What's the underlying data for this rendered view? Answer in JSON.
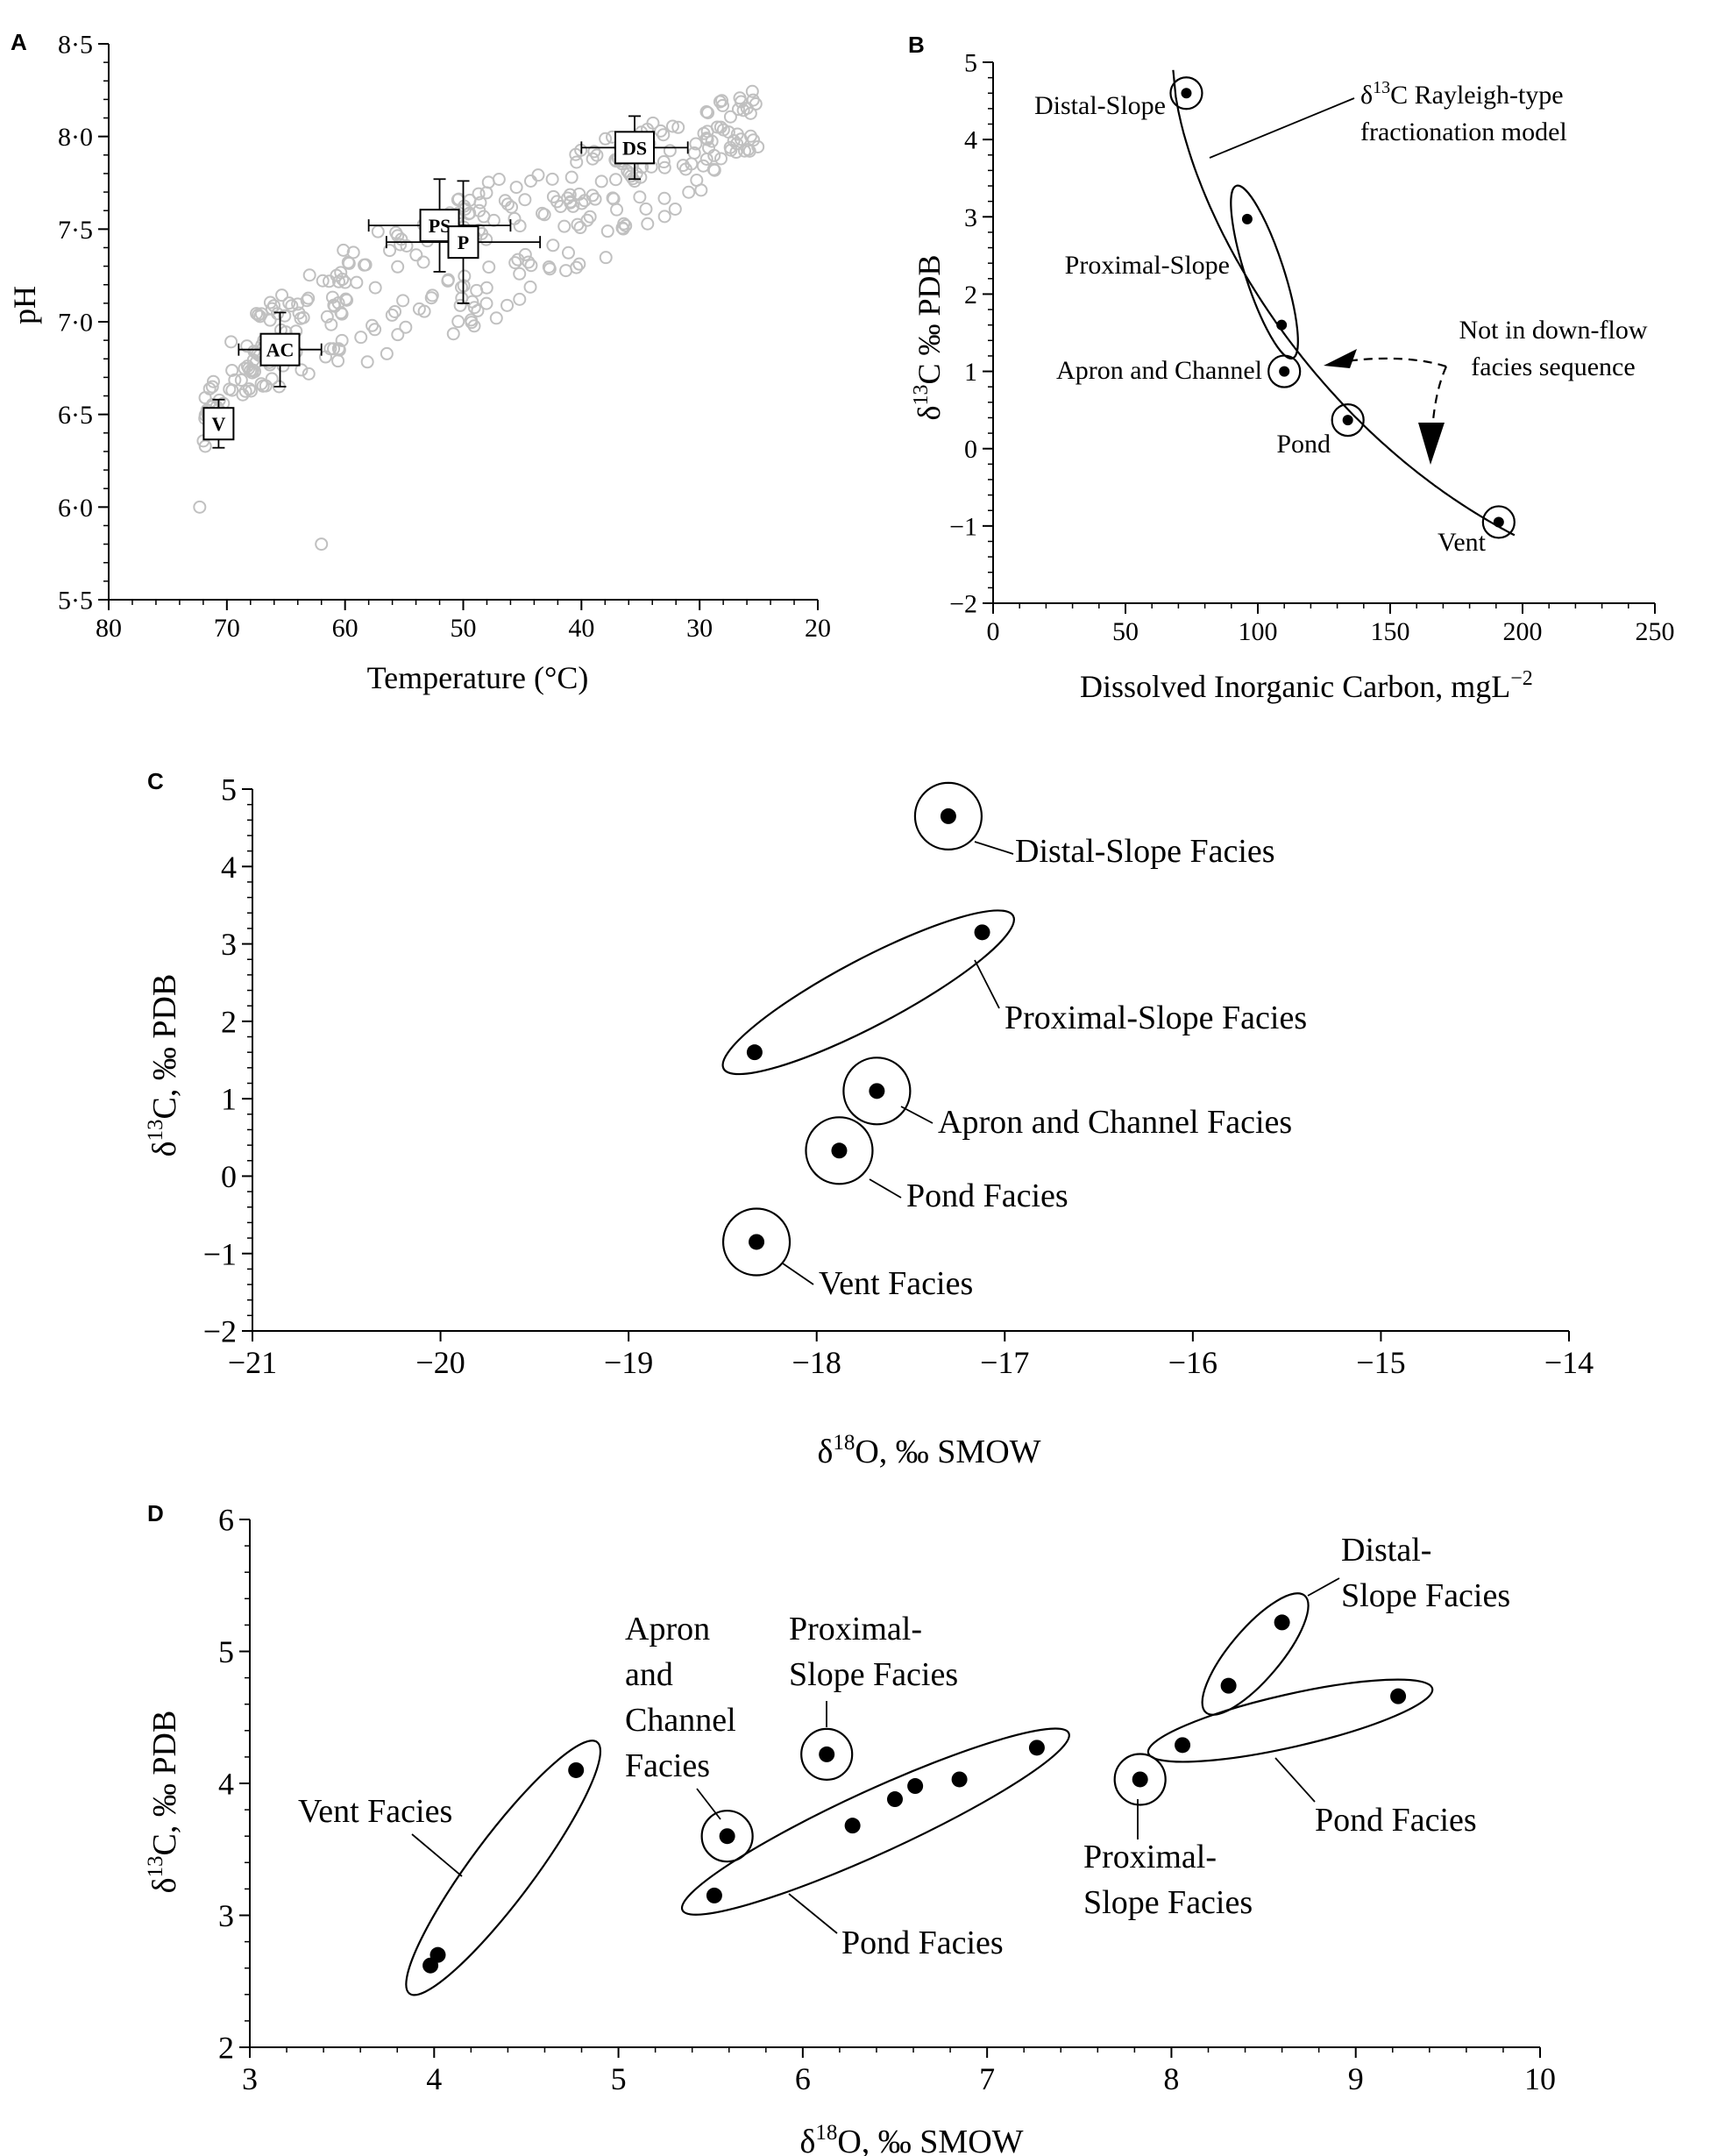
{
  "chart_data": [
    {
      "id": "A",
      "type": "scatter",
      "panel_label": "A",
      "xlabel": "Temperature (°C)",
      "ylabel": "pH",
      "xlim": [
        80,
        20
      ],
      "ylim": [
        5.5,
        8.5
      ],
      "x_ticks": [
        "80",
        "70",
        "60",
        "50",
        "40",
        "30",
        "20"
      ],
      "y_ticks": [
        "5·5",
        "6·0",
        "6·5",
        "7·0",
        "7·5",
        "8·0",
        "8·5"
      ],
      "labelled_points": [
        {
          "label": "V",
          "x": 70.7,
          "y": 6.45,
          "xerr": 1.2,
          "yerr": 0.13
        },
        {
          "label": "AC",
          "x": 65.5,
          "y": 6.85,
          "xerr": 3.5,
          "yerr": 0.2
        },
        {
          "label": "PS",
          "x": 52.0,
          "y": 7.52,
          "xerr": 6.0,
          "yerr": 0.25
        },
        {
          "label": "P",
          "x": 50.0,
          "y": 7.43,
          "xerr": 6.5,
          "yerr": 0.33
        },
        {
          "label": "DS",
          "x": 35.5,
          "y": 7.94,
          "xerr": 4.5,
          "yerr": 0.17
        }
      ],
      "colors": {
        "background_points": "#c0c0c0",
        "labelled_points": "#000000"
      }
    },
    {
      "id": "B",
      "type": "scatter",
      "panel_label": "B",
      "xlabel": "Dissolved Inorganic Carbon, mgL",
      "xlabel_sup": "−2",
      "ylabel": "δ13C ‰ PDB",
      "xlim": [
        0,
        250
      ],
      "ylim": [
        -2,
        5
      ],
      "x_ticks": [
        "0",
        "50",
        "100",
        "150",
        "200",
        "250"
      ],
      "y_ticks": [
        "−2",
        "−1",
        "0",
        "1",
        "2",
        "3",
        "4",
        "5"
      ],
      "points": [
        {
          "label": "Distal-Slope",
          "x": 73,
          "y": 4.6
        },
        {
          "label": "Proximal-Slope",
          "x": 96,
          "y": 2.97
        },
        {
          "label": "Proximal-Slope",
          "x": 109,
          "y": 1.6
        },
        {
          "label": "Apron and Channel",
          "x": 110,
          "y": 1.0
        },
        {
          "label": "Pond",
          "x": 134,
          "y": 0.37
        },
        {
          "label": "Vent",
          "x": 191,
          "y": -0.95
        }
      ],
      "curve_label_line1": "δ13C Rayleigh-type",
      "curve_label_line2": "fractionation model",
      "note_line1": "Not in down-flow",
      "note_line2": "facies sequence"
    },
    {
      "id": "C",
      "type": "scatter",
      "panel_label": "C",
      "xlabel": "δ18O, ‰ SMOW",
      "ylabel": "δ13C, ‰ PDB",
      "xlim": [
        -21,
        -14
      ],
      "ylim": [
        -2,
        5
      ],
      "x_ticks": [
        "−21",
        "−20",
        "−19",
        "−18",
        "−17",
        "−16",
        "−15",
        "−14"
      ],
      "y_ticks": [
        "−2",
        "−1",
        "0",
        "1",
        "2",
        "3",
        "4",
        "5"
      ],
      "points": [
        {
          "label": "Distal-Slope Facies",
          "x": -17.3,
          "y": 4.65
        },
        {
          "label": "Proximal-Slope Facies",
          "x": -17.12,
          "y": 3.15
        },
        {
          "label": "Proximal-Slope Facies",
          "x": -18.33,
          "y": 1.6
        },
        {
          "label": "Apron and Channel Facies",
          "x": -17.68,
          "y": 1.1
        },
        {
          "label": "Pond Facies",
          "x": -17.88,
          "y": 0.33
        },
        {
          "label": "Vent Facies",
          "x": -18.32,
          "y": -0.85
        }
      ]
    },
    {
      "id": "D",
      "type": "scatter",
      "panel_label": "D",
      "xlabel": "δ18O, ‰ SMOW",
      "ylabel": "δ13C, ‰ PDB",
      "xlim": [
        3,
        10
      ],
      "ylim": [
        2,
        6
      ],
      "x_ticks": [
        "3",
        "4",
        "5",
        "6",
        "7",
        "8",
        "9",
        "10"
      ],
      "y_ticks": [
        "2",
        "3",
        "4",
        "5",
        "6"
      ],
      "points": [
        {
          "label": "Vent Facies",
          "x": 3.98,
          "y": 2.62
        },
        {
          "label": "Vent Facies",
          "x": 4.02,
          "y": 2.7
        },
        {
          "label": "Vent Facies",
          "x": 4.77,
          "y": 4.1
        },
        {
          "label": "Apron and Channel Facies",
          "x": 5.59,
          "y": 3.6
        },
        {
          "label": "Proximal-Slope Facies",
          "x": 6.13,
          "y": 4.22
        },
        {
          "label": "Pond Facies",
          "x": 5.52,
          "y": 3.15
        },
        {
          "label": "Pond Facies",
          "x": 6.27,
          "y": 3.68
        },
        {
          "label": "Pond Facies",
          "x": 6.5,
          "y": 3.88
        },
        {
          "label": "Pond Facies",
          "x": 6.61,
          "y": 3.98
        },
        {
          "label": "Pond Facies",
          "x": 6.85,
          "y": 4.03
        },
        {
          "label": "Pond Facies",
          "x": 7.27,
          "y": 4.27
        },
        {
          "label": "Proximal-Slope Facies",
          "x": 7.83,
          "y": 4.03
        },
        {
          "label": "Pond Facies",
          "x": 8.06,
          "y": 4.29
        },
        {
          "label": "Pond Facies",
          "x": 9.23,
          "y": 4.66
        },
        {
          "label": "Distal-Slope Facies",
          "x": 8.31,
          "y": 4.74
        },
        {
          "label": "Distal-Slope Facies",
          "x": 8.6,
          "y": 5.22
        }
      ],
      "labels": {
        "vent": "Vent Facies",
        "apron_1": "Apron",
        "apron_2": "and",
        "apron_3": "Channel",
        "apron_4": "Facies",
        "prox_top_1": "Proximal-",
        "prox_top_2": "Slope Facies",
        "pond_left": "Pond Facies",
        "prox_bot_1": "Proximal-",
        "prox_bot_2": "Slope Facies",
        "pond_right": "Pond Facies",
        "distal_1": "Distal-",
        "distal_2": "Slope Facies"
      }
    }
  ]
}
